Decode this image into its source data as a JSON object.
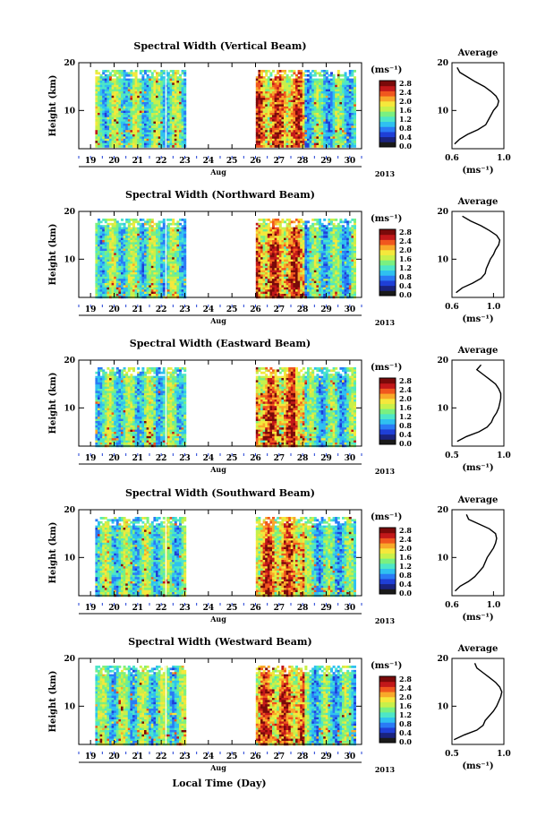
{
  "figure": {
    "xlabel": "Local Time (Day)"
  },
  "colorbar": {
    "unit": "(ms⁻¹)",
    "ticks": [
      "0.0",
      "0.4",
      "0.8",
      "1.2",
      "1.6",
      "2.0",
      "2.4",
      "2.8"
    ],
    "colors": [
      "#1a1a1a",
      "#1a237e",
      "#1f3fd6",
      "#2a7bf5",
      "#2fc1f0",
      "#4de6c8",
      "#7af081",
      "#c8f04a",
      "#f5e83c",
      "#f8a82a",
      "#f0571e",
      "#c2181a",
      "#7a0a0a"
    ]
  },
  "profile": {
    "title": "Average",
    "unit": "(ms⁻¹)"
  },
  "chart_data": [
    {
      "type": "heatmap",
      "title": "Spectral Width (Vertical Beam)",
      "ylabel": "Height (km)",
      "y_ticks": [
        "10",
        "20"
      ],
      "x_ticks": [
        "19",
        "20",
        "21",
        "22",
        "23",
        "24",
        "25",
        "26",
        "27",
        "28",
        "29",
        "30"
      ],
      "x_month": "Aug",
      "year": "2013",
      "ylim": [
        2,
        20
      ],
      "xlim": [
        18.5,
        30.5
      ],
      "clim": [
        0.0,
        2.8
      ],
      "data_gaps": [
        [
          23.0,
          26.0
        ]
      ],
      "profile": {
        "type": "line",
        "xlim": [
          0.6,
          1.0
        ],
        "xticks": [
          "0.6",
          "1.0"
        ],
        "ylim": [
          2,
          20
        ],
        "heights": [
          3,
          4,
          5,
          6,
          7,
          8,
          9,
          10,
          11,
          12,
          13,
          14,
          15,
          16,
          17,
          18,
          19
        ],
        "values": [
          0.62,
          0.66,
          0.72,
          0.8,
          0.86,
          0.88,
          0.9,
          0.92,
          0.95,
          0.96,
          0.94,
          0.9,
          0.85,
          0.78,
          0.72,
          0.66,
          0.64
        ]
      }
    },
    {
      "type": "heatmap",
      "title": "Spectral Width (Northward Beam)",
      "ylabel": "Height (km)",
      "y_ticks": [
        "10",
        "20"
      ],
      "x_ticks": [
        "19",
        "20",
        "21",
        "22",
        "23",
        "24",
        "25",
        "26",
        "27",
        "28",
        "29",
        "30"
      ],
      "x_month": "Aug",
      "year": "2013",
      "ylim": [
        2,
        20
      ],
      "xlim": [
        18.5,
        30.5
      ],
      "clim": [
        0.0,
        2.8
      ],
      "data_gaps": [
        [
          23.0,
          26.0
        ]
      ],
      "profile": {
        "type": "line",
        "xlim": [
          0.6,
          1.1
        ],
        "xticks": [
          "0.6",
          "1.0"
        ],
        "ylim": [
          2,
          20
        ],
        "heights": [
          3,
          4,
          5,
          6,
          7,
          8,
          9,
          10,
          11,
          12,
          13,
          14,
          15,
          16,
          17,
          18,
          19
        ],
        "values": [
          0.64,
          0.7,
          0.8,
          0.88,
          0.92,
          0.93,
          0.95,
          0.97,
          1.0,
          1.02,
          1.05,
          1.06,
          1.03,
          0.96,
          0.88,
          0.78,
          0.7
        ]
      }
    },
    {
      "type": "heatmap",
      "title": "Spectral Width (Eastward Beam)",
      "ylabel": "Height (km)",
      "y_ticks": [
        "10",
        "20"
      ],
      "x_ticks": [
        "19",
        "20",
        "21",
        "22",
        "23",
        "24",
        "25",
        "26",
        "27",
        "28",
        "29",
        "30"
      ],
      "x_month": "Aug",
      "year": "2013",
      "ylim": [
        2,
        20
      ],
      "xlim": [
        18.5,
        30.5
      ],
      "clim": [
        0.0,
        2.8
      ],
      "data_gaps": [
        [
          23.0,
          26.0
        ]
      ],
      "profile": {
        "type": "line",
        "xlim": [
          0.5,
          1.0
        ],
        "xticks": [
          "0.5",
          "1.0"
        ],
        "ylim": [
          2,
          20
        ],
        "heights": [
          3,
          4,
          5,
          6,
          7,
          8,
          9,
          10,
          11,
          12,
          13,
          14,
          15,
          16,
          17,
          18,
          19
        ],
        "values": [
          0.55,
          0.64,
          0.76,
          0.84,
          0.88,
          0.9,
          0.93,
          0.95,
          0.96,
          0.97,
          0.97,
          0.95,
          0.92,
          0.86,
          0.8,
          0.74,
          0.78
        ]
      }
    },
    {
      "type": "heatmap",
      "title": "Spectral Width (Southward Beam)",
      "ylabel": "Height (km)",
      "y_ticks": [
        "10",
        "20"
      ],
      "x_ticks": [
        "19",
        "20",
        "21",
        "22",
        "23",
        "24",
        "25",
        "26",
        "27",
        "28",
        "29",
        "30"
      ],
      "x_month": "Aug",
      "year": "2013",
      "ylim": [
        2,
        20
      ],
      "xlim": [
        18.5,
        30.5
      ],
      "clim": [
        0.0,
        2.8
      ],
      "data_gaps": [
        [
          23.0,
          26.0
        ]
      ],
      "profile": {
        "type": "line",
        "xlim": [
          0.6,
          1.1
        ],
        "xticks": [
          "0.6",
          "1.0"
        ],
        "ylim": [
          2,
          20
        ],
        "heights": [
          3,
          4,
          5,
          6,
          7,
          8,
          9,
          10,
          11,
          12,
          13,
          14,
          15,
          16,
          17,
          18,
          19
        ],
        "values": [
          0.63,
          0.68,
          0.76,
          0.82,
          0.86,
          0.9,
          0.92,
          0.94,
          0.97,
          1.0,
          1.02,
          1.03,
          1.02,
          0.96,
          0.86,
          0.76,
          0.74
        ]
      }
    },
    {
      "type": "heatmap",
      "title": "Spectral Width (Westward Beam)",
      "ylabel": "Height (km)",
      "y_ticks": [
        "10",
        "20"
      ],
      "x_ticks": [
        "19",
        "20",
        "21",
        "22",
        "23",
        "24",
        "25",
        "26",
        "27",
        "28",
        "29",
        "30"
      ],
      "x_month": "Aug",
      "year": "2013",
      "ylim": [
        2,
        20
      ],
      "xlim": [
        18.5,
        30.5
      ],
      "clim": [
        0.0,
        2.8
      ],
      "data_gaps": [
        [
          23.0,
          26.0
        ]
      ],
      "profile": {
        "type": "line",
        "xlim": [
          0.5,
          1.0
        ],
        "xticks": [
          "0.5",
          "1.0"
        ],
        "ylim": [
          2,
          20
        ],
        "heights": [
          3,
          4,
          5,
          6,
          7,
          8,
          9,
          10,
          11,
          12,
          13,
          14,
          15,
          16,
          17,
          18,
          19
        ],
        "values": [
          0.52,
          0.62,
          0.74,
          0.8,
          0.82,
          0.86,
          0.9,
          0.93,
          0.95,
          0.97,
          0.98,
          0.96,
          0.92,
          0.86,
          0.8,
          0.74,
          0.72
        ]
      }
    }
  ]
}
